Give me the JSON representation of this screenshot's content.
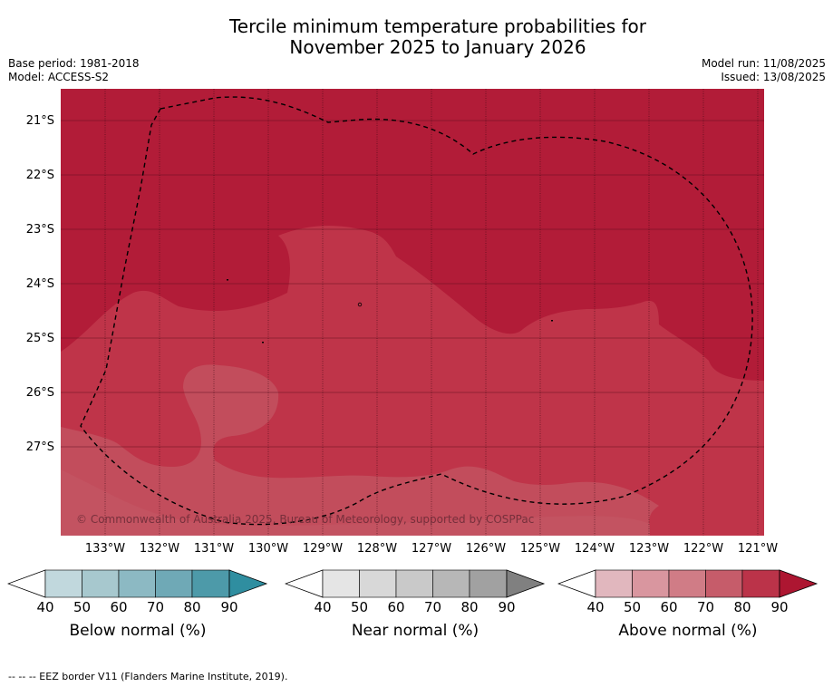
{
  "title_line1": "Tercile minimum temperature probabilities for",
  "title_line2": "November 2025 to January 2026",
  "meta_left": [
    "Base period: 1981-2018",
    "Model: ACCESS-S2"
  ],
  "meta_right": [
    "Model run: 11/08/2025",
    "Issued: 13/08/2025"
  ],
  "copyright": "© Commonwealth of Australia 2025, Bureau of Meteorology, supported by COSPPac",
  "footer": "-- -- -- EEZ border V11 (Flanders Marine Institute, 2019).",
  "lat_labels": [
    "21°S",
    "22°S",
    "23°S",
    "24°S",
    "25°S",
    "26°S",
    "27°S"
  ],
  "lon_labels": [
    "133°W",
    "132°W",
    "131°W",
    "130°W",
    "129°W",
    "128°W",
    "127°W",
    "126°W",
    "125°W",
    "124°W",
    "123°W",
    "122°W",
    "121°W"
  ],
  "colorbars": [
    {
      "label": "Below normal (%)",
      "ticks": [
        "40",
        "50",
        "60",
        "70",
        "80",
        "90"
      ],
      "colors": [
        "#c1d8dd",
        "#a7c8ce",
        "#8cb9c3",
        "#6fa9b6",
        "#4d9aa9",
        "#2f8ea0"
      ]
    },
    {
      "label": "Near normal (%)",
      "ticks": [
        "40",
        "50",
        "60",
        "70",
        "80",
        "90"
      ],
      "colors": [
        "#e5e5e5",
        "#d8d8d8",
        "#c9c9c9",
        "#b7b7b7",
        "#a1a1a1",
        "#808080"
      ]
    },
    {
      "label": "Above normal (%)",
      "ticks": [
        "40",
        "50",
        "60",
        "70",
        "80",
        "90"
      ],
      "colors": [
        "#e1b7be",
        "#d9969f",
        "#d07c86",
        "#c65c6a",
        "#bb3349",
        "#ad1631"
      ]
    }
  ],
  "map_colors": {
    "high": "#b21c38",
    "mid": "#bf3449",
    "low": "#c24d5c",
    "lowest": "#c45a66"
  }
}
